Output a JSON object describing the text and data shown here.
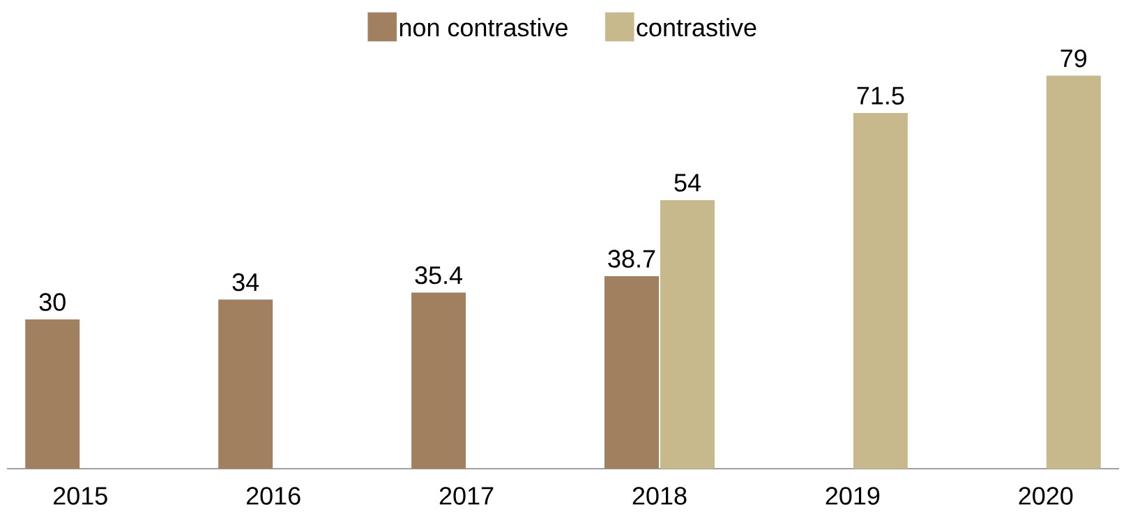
{
  "chart_data": {
    "type": "bar",
    "categories": [
      "2015",
      "2016",
      "2017",
      "2018",
      "2019",
      "2020"
    ],
    "series": [
      {
        "name": "non contrastive",
        "color": "#a0805f",
        "values": [
          30,
          34,
          35.4,
          38.7,
          null,
          null
        ]
      },
      {
        "name": "contrastive",
        "color": "#c8b98c",
        "values": [
          null,
          null,
          null,
          54,
          71.5,
          79
        ]
      }
    ],
    "data_labels": true,
    "legend": "top"
  }
}
